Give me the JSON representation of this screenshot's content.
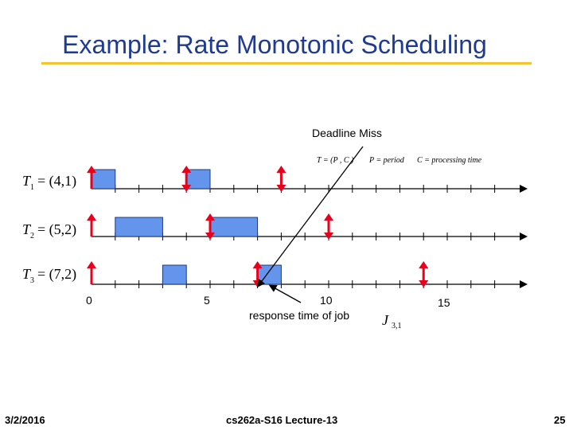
{
  "slide": {
    "title": "Example: Rate Monotonic Scheduling",
    "accent_color": "#f2c531",
    "title_color": "#1f3b8f"
  },
  "diagram": {
    "deadline_miss_label": "Deadline Miss",
    "response_label": "response time of job",
    "job_label": {
      "base": "J",
      "sub": "3,1"
    },
    "legend": {
      "tuple": "T = (P , C )",
      "period": "P = period",
      "processing": "C = processing time"
    },
    "tasks": [
      {
        "name": "T",
        "sub": "1",
        "params": "= (4,1)",
        "period": 4,
        "exec": 1,
        "busy": [
          [
            0,
            1
          ],
          [
            4,
            5
          ]
        ],
        "releases": [
          0,
          4,
          8
        ],
        "deadline_arrows": [
          4,
          8
        ]
      },
      {
        "name": "T",
        "sub": "2",
        "params": "= (5,2)",
        "period": 5,
        "exec": 2,
        "busy": [
          [
            1,
            3
          ],
          [
            5,
            7
          ]
        ],
        "releases": [
          0,
          5,
          10
        ],
        "deadline_arrows": [
          5,
          10
        ]
      },
      {
        "name": "T",
        "sub": "3",
        "params": "= (7,2)",
        "period": 7,
        "exec": 2,
        "busy": [
          [
            3,
            4
          ],
          [
            7,
            8
          ]
        ],
        "releases": [
          0,
          7,
          14
        ],
        "deadline_arrows": [
          7,
          14
        ]
      }
    ],
    "time_labels": [
      "0",
      "5",
      "10",
      "15"
    ],
    "block_color": "#6495ed",
    "arrow_color": "#e8001c"
  },
  "footer": {
    "date": "3/2/2016",
    "course": "cs262a-S16 Lecture-13",
    "page": "25"
  }
}
